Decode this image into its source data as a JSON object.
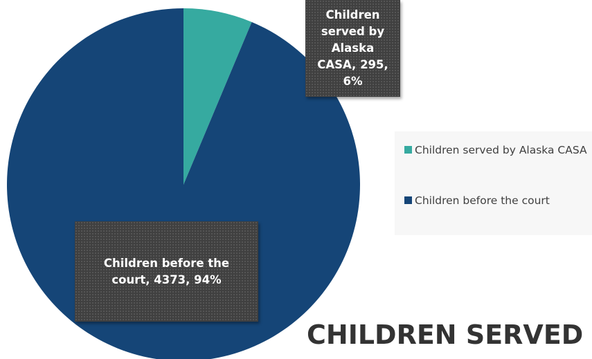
{
  "chart_data": {
    "type": "pie",
    "title": "CHILDREN SERVED",
    "categories": [
      "Children served by Alaska CASA",
      "Children before the court"
    ],
    "values": [
      295,
      4373
    ],
    "value_labels": [
      "Children served by Alaska CASA, 295, 6%",
      "Children before the court, 4373, 94%"
    ],
    "colors": [
      "#36aaa0",
      "#154577"
    ],
    "legend": "right"
  }
}
